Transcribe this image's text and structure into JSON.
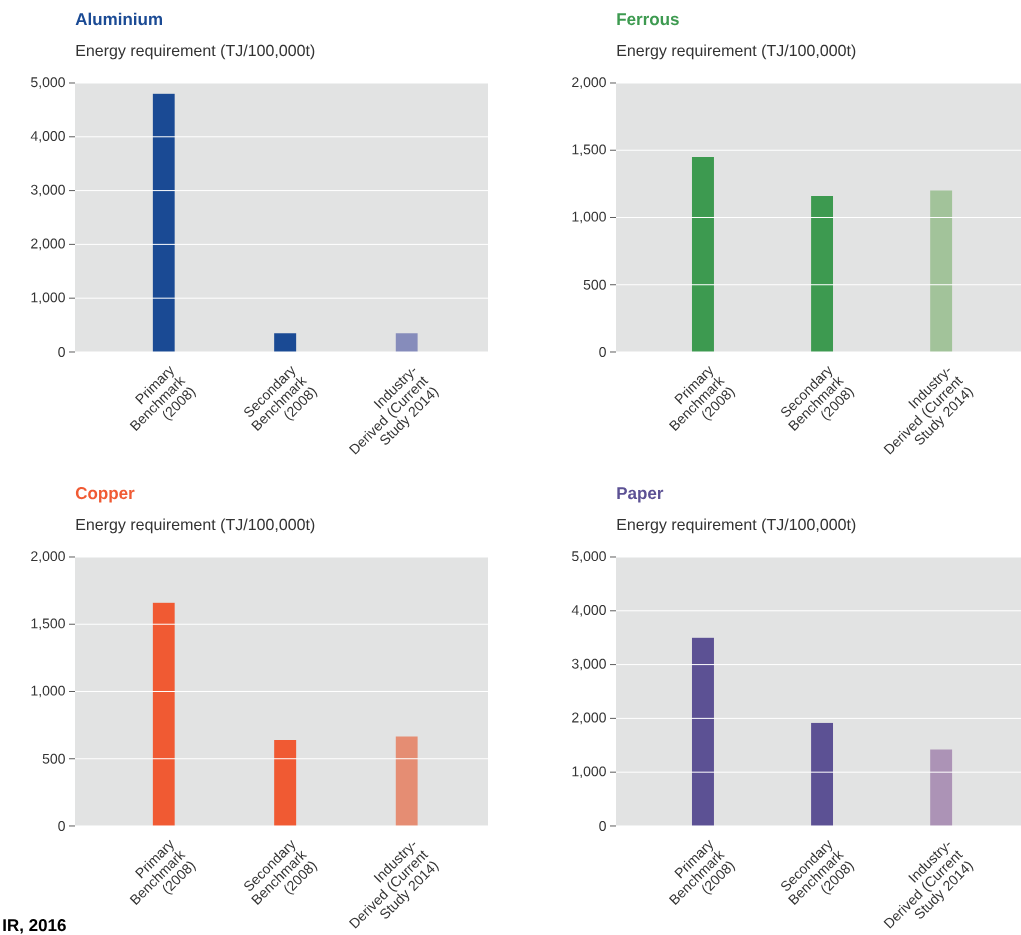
{
  "chart_data": [
    {
      "type": "bar",
      "title": "Aluminium",
      "ylabel": "Energy requirement (TJ/100,000t)",
      "categories": [
        "Primary Benchmark (2008)",
        "Secondary Benchmark (2008)",
        "Industry-Derived (Current Study 2014)"
      ],
      "values": [
        4800,
        350,
        350
      ],
      "colors": [
        "#1a4a94",
        "#1a4a94",
        "#868cbb"
      ],
      "ylim": [
        0,
        5000
      ],
      "yticks": [
        0,
        {
          "value": 1000,
          "label": "1,000"
        },
        {
          "value": 2000,
          "label": "2,000"
        },
        {
          "value": 3000,
          "label": "3,000"
        },
        {
          "value": 4000,
          "label": "4,000"
        },
        {
          "value": 5000,
          "label": "5,000"
        }
      ],
      "grid": "y"
    },
    {
      "type": "bar",
      "title": "Ferrous",
      "ylabel": "Energy requirement (TJ/100,000t)",
      "categories": [
        "Primary Benchmark (2008)",
        "Secondary Benchmark (2008)",
        "Industry-Derived (Current Study 2014)"
      ],
      "values": [
        1450,
        1160,
        1200
      ],
      "colors": [
        "#3d9a50",
        "#3d9a50",
        "#a2c39a"
      ],
      "ylim": [
        0,
        2000
      ],
      "yticks": [
        0,
        500,
        {
          "value": 1000,
          "label": "1,000"
        },
        {
          "value": 1500,
          "label": "1,500"
        },
        {
          "value": 2000,
          "label": "2,000"
        }
      ],
      "grid": "y"
    },
    {
      "type": "bar",
      "title": "Copper",
      "ylabel": "Energy requirement (TJ/100,000t)",
      "categories": [
        "Primary Benchmark (2008)",
        "Secondary Benchmark (2008)",
        "Industry-Derived (Current Study 2014)"
      ],
      "values": [
        1660,
        640,
        665
      ],
      "colors": [
        "#f05a33",
        "#f05a33",
        "#e58d73"
      ],
      "ylim": [
        0,
        2000
      ],
      "yticks": [
        0,
        500,
        {
          "value": 1000,
          "label": "1,000"
        },
        {
          "value": 1500,
          "label": "1,500"
        },
        {
          "value": 2000,
          "label": "2,000"
        }
      ],
      "grid": "y",
      "annotations": [
        "IR, 2016"
      ]
    },
    {
      "type": "bar",
      "title": "Paper",
      "ylabel": "Energy requirement (TJ/100,000t)",
      "categories": [
        "Primary Benchmark (2008)",
        "Secondary Benchmark (2008)",
        "Industry-Derived (Current Study 2014)"
      ],
      "values": [
        3500,
        1920,
        1420
      ],
      "colors": [
        "#5c5194",
        "#5c5194",
        "#ac93b6"
      ],
      "ylim": [
        0,
        5000
      ],
      "yticks": [
        0,
        {
          "value": 1000,
          "label": "1,000"
        },
        {
          "value": 2000,
          "label": "2,000"
        },
        {
          "value": 3000,
          "label": "3,000"
        },
        {
          "value": 4000,
          "label": "4,000"
        },
        {
          "value": 5000,
          "label": "5,000"
        }
      ],
      "grid": "y"
    }
  ]
}
